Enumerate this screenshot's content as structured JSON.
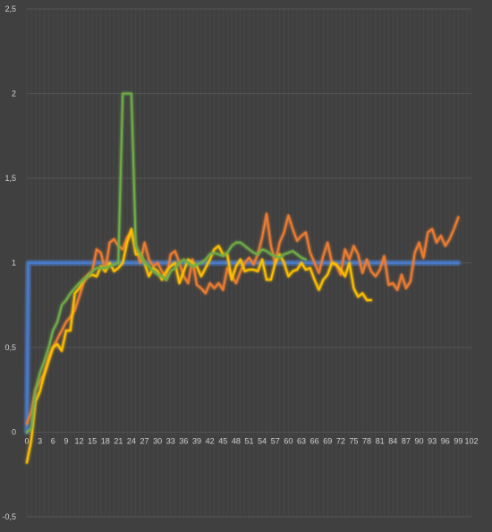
{
  "chart_data": {
    "type": "line",
    "title": "",
    "xlabel": "",
    "ylabel": "",
    "xlim": [
      0,
      102
    ],
    "ylim": [
      -0.5,
      2.5
    ],
    "grid": true,
    "legend": "none",
    "x_tick_labels": [
      "0",
      "3",
      "6",
      "9",
      "12",
      "15",
      "18",
      "21",
      "24",
      "27",
      "30",
      "33",
      "36",
      "39",
      "42",
      "45",
      "48",
      "51",
      "54",
      "57",
      "60",
      "63",
      "66",
      "69",
      "72",
      "75",
      "78",
      "81",
      "84",
      "87",
      "90",
      "93",
      "96",
      "99",
      "102"
    ],
    "y_tick_labels": [
      "-0,5",
      "0",
      "0,5",
      "1",
      "1,5",
      "2",
      "2,5"
    ],
    "colors": {
      "background": "#404040",
      "grid": "#5a5a5a",
      "text": "#d0d0d0",
      "blue": "#4a78c4",
      "orange": "#ed7d31",
      "yellow": "#ffc000",
      "green": "#70ad47"
    },
    "series": [
      {
        "color": "#4a78c4",
        "x": [
          0,
          0.3,
          1,
          2,
          20,
          23,
          60,
          80,
          89,
          99
        ],
        "y": [
          0,
          1.0,
          1.0,
          1.0,
          1.0,
          1.0,
          1.0,
          1.0,
          1.0,
          1.0
        ]
      },
      {
        "color": "#ed7d31",
        "x": [
          0,
          1,
          2,
          3,
          4,
          5,
          6,
          7,
          8,
          9,
          10,
          11,
          12,
          13,
          14,
          15,
          16,
          17,
          18,
          19,
          20,
          21,
          22,
          23,
          24,
          25,
          26,
          27,
          28,
          29,
          30,
          31,
          32,
          33,
          34,
          35,
          36,
          37,
          38,
          39,
          40,
          41,
          42,
          43,
          44,
          45,
          46,
          47,
          48,
          49,
          50,
          51,
          52,
          53,
          54,
          55,
          56,
          57,
          58,
          59,
          60,
          61,
          62,
          63,
          64,
          65,
          66,
          67,
          68,
          69,
          70,
          71,
          72,
          73,
          74,
          75,
          76,
          77,
          78,
          79,
          80,
          81,
          82,
          83,
          84,
          85,
          86,
          87,
          88,
          89,
          90,
          91,
          92,
          93,
          94,
          95,
          96,
          97,
          98,
          99
        ],
        "y": [
          0.05,
          0.12,
          0.25,
          0.3,
          0.35,
          0.45,
          0.5,
          0.55,
          0.6,
          0.65,
          0.68,
          0.72,
          0.8,
          0.88,
          0.93,
          0.95,
          1.08,
          1.06,
          0.95,
          1.12,
          1.14,
          1.1,
          1.08,
          1.15,
          1.18,
          1.1,
          1.0,
          1.12,
          1.02,
          0.98,
          1.0,
          0.95,
          0.9,
          1.05,
          1.07,
          1.0,
          0.92,
          0.88,
          1.02,
          0.87,
          0.85,
          0.82,
          0.88,
          0.85,
          0.88,
          0.84,
          0.97,
          0.92,
          0.88,
          0.95,
          1.0,
          1.03,
          0.99,
          1.05,
          1.15,
          1.29,
          1.1,
          1.0,
          1.12,
          1.18,
          1.28,
          1.2,
          1.13,
          1.16,
          1.18,
          1.06,
          1.0,
          0.94,
          1.04,
          1.12,
          1.0,
          0.99,
          0.93,
          1.08,
          1.02,
          1.1,
          1.05,
          0.94,
          1.02,
          0.95,
          0.92,
          0.96,
          1.04,
          0.87,
          0.88,
          0.84,
          0.93,
          0.85,
          0.89,
          1.06,
          1.12,
          1.03,
          1.18,
          1.2,
          1.12,
          1.16,
          1.1,
          1.14,
          1.2,
          1.27
        ]
      },
      {
        "color": "#ffc000",
        "x": [
          0,
          1,
          2,
          3,
          4,
          5,
          6,
          7,
          8,
          9,
          10,
          11,
          12,
          13,
          14,
          15,
          16,
          17,
          18,
          19,
          20,
          21,
          22,
          23,
          24,
          25,
          26,
          27,
          28,
          29,
          30,
          31,
          32,
          33,
          34,
          35,
          36,
          37,
          38,
          39,
          40,
          41,
          42,
          43,
          44,
          45,
          46,
          47,
          48,
          49,
          50,
          51,
          52,
          53,
          54,
          55,
          56,
          57,
          58,
          59,
          60,
          61,
          62,
          63,
          64,
          65,
          66,
          67,
          68,
          69,
          70,
          71,
          72,
          73,
          74,
          75,
          76,
          77,
          78,
          79
        ],
        "y": [
          -0.18,
          -0.05,
          0.18,
          0.24,
          0.34,
          0.42,
          0.5,
          0.52,
          0.48,
          0.6,
          0.6,
          0.82,
          0.85,
          0.9,
          0.92,
          0.93,
          0.92,
          0.98,
          0.95,
          1.0,
          0.95,
          0.97,
          1.0,
          1.12,
          1.2,
          1.05,
          1.05,
          1.0,
          0.92,
          0.97,
          0.95,
          0.9,
          0.95,
          0.98,
          1.0,
          0.88,
          0.95,
          1.02,
          1.0,
          0.98,
          0.92,
          0.97,
          1.02,
          1.08,
          1.1,
          1.05,
          1.05,
          0.9,
          0.98,
          1.02,
          0.95,
          0.96,
          0.96,
          0.95,
          1.02,
          0.9,
          0.9,
          1.0,
          1.05,
          1.0,
          0.92,
          0.95,
          0.96,
          1.0,
          0.96,
          0.97,
          0.9,
          0.84,
          0.9,
          0.93,
          1.0,
          0.99,
          0.96,
          0.92,
          1.0,
          0.85,
          0.8,
          0.82,
          0.78,
          0.78
        ]
      },
      {
        "color": "#70ad47",
        "x": [
          0,
          1,
          2,
          3,
          4,
          5,
          6,
          7,
          8,
          9,
          10,
          11,
          12,
          13,
          14,
          15,
          16,
          17,
          18,
          19,
          20,
          21,
          22,
          23,
          24,
          25,
          26,
          27,
          28,
          29,
          30,
          31,
          32,
          33,
          34,
          35,
          36,
          37,
          38,
          39,
          40,
          41,
          42,
          43,
          44,
          45,
          46,
          47,
          48,
          49,
          50,
          51,
          52,
          53,
          54,
          55,
          56,
          57,
          58,
          59,
          60,
          61,
          62,
          63,
          64
        ],
        "y": [
          0.0,
          0.02,
          0.25,
          0.35,
          0.42,
          0.5,
          0.6,
          0.65,
          0.75,
          0.78,
          0.82,
          0.85,
          0.88,
          0.9,
          0.92,
          0.95,
          0.97,
          0.97,
          0.97,
          0.98,
          0.99,
          1.0,
          2.0,
          2.0,
          2.0,
          1.1,
          1.05,
          1.0,
          0.98,
          0.95,
          0.93,
          0.92,
          0.9,
          0.95,
          0.97,
          1.0,
          1.02,
          1.0,
          0.98,
          0.99,
          1.0,
          1.02,
          1.05,
          1.06,
          1.05,
          1.04,
          1.06,
          1.1,
          1.12,
          1.12,
          1.1,
          1.08,
          1.06,
          1.05,
          1.08,
          1.07,
          1.05,
          1.04,
          1.03,
          1.05,
          1.06,
          1.07,
          1.05,
          1.03,
          1.02
        ]
      }
    ]
  }
}
